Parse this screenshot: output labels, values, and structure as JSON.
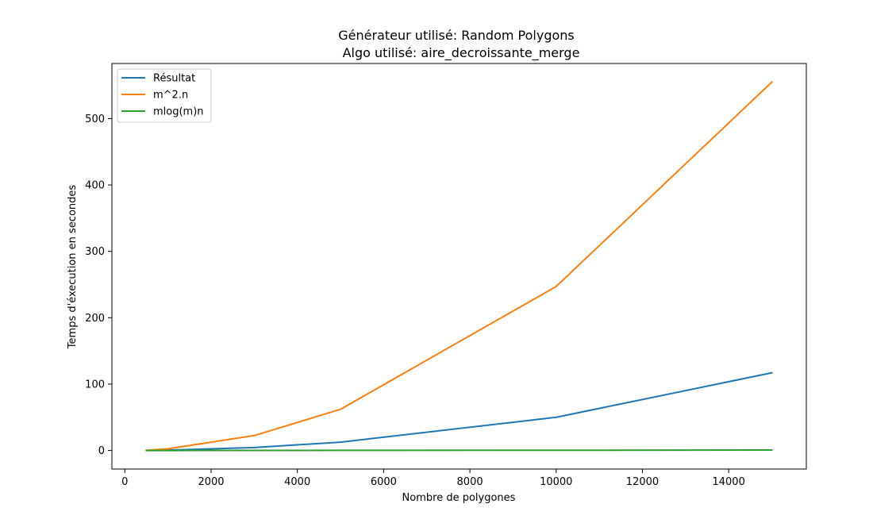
{
  "chart_data": {
    "type": "line",
    "title": "Générateur utilisé: Random Polygons",
    "subtitle": "Algo utilisé: aire_decroissante_merge",
    "xlabel": "Nombre de polygones",
    "ylabel": "Temps d'éxecution en secondes",
    "xlim": [
      -300,
      15800
    ],
    "ylim": [
      -28,
      583
    ],
    "x_ticks": [
      "0",
      "2000",
      "4000",
      "6000",
      "8000",
      "10000",
      "12000",
      "14000"
    ],
    "x_tick_values": [
      0,
      2000,
      4000,
      6000,
      8000,
      10000,
      12000,
      14000
    ],
    "y_ticks": [
      "0",
      "100",
      "200",
      "300",
      "400",
      "500"
    ],
    "y_tick_values": [
      0,
      100,
      200,
      300,
      400,
      500
    ],
    "legend_placement": "upper-left",
    "grid": false,
    "series": [
      {
        "name": "Résultat",
        "color": "#1f77b4",
        "x": [
          500,
          1000,
          3000,
          5000,
          10000,
          15000
        ],
        "y": [
          0.1,
          0.5,
          4.5,
          12.5,
          50,
          117
        ]
      },
      {
        "name": "m^2.n",
        "color": "#ff7f0e",
        "x": [
          500,
          1000,
          3000,
          5000,
          10000,
          15000
        ],
        "y": [
          0.3,
          2.5,
          22.5,
          62,
          247,
          555
        ]
      },
      {
        "name": "mlog(m)n",
        "color": "#2ca02c",
        "x": [
          500,
          1000,
          3000,
          5000,
          10000,
          15000
        ],
        "y": [
          0.0,
          0.02,
          0.1,
          0.2,
          0.4,
          0.7
        ]
      }
    ]
  }
}
